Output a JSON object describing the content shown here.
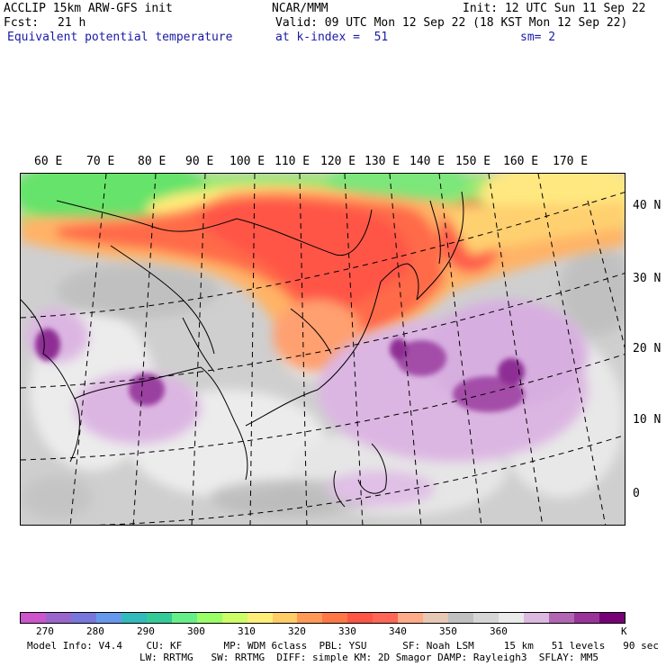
{
  "header": {
    "title_left": "ACCLIP 15km ARW-GFS init",
    "center": "NCAR/MMM",
    "init": "Init: 12 UTC Sun 11 Sep 22",
    "fcst_label": "Fcst:",
    "fcst_value": "21 h",
    "valid": "Valid: 09 UTC Mon 12 Sep 22 (18 KST Mon 12 Sep 22)",
    "field": "Equivalent potential temperature",
    "level": "at k-index =  51",
    "smoothing": "sm= 2"
  },
  "map": {
    "lon_labels": [
      "60 E",
      "70 E",
      "80 E",
      "90 E",
      "100 E",
      "110 E",
      "120 E",
      "130 E",
      "140 E",
      "150 E",
      "160 E",
      "170 E"
    ],
    "lat_labels": [
      "40 N",
      "30 N",
      "20 N",
      "10 N",
      "0"
    ]
  },
  "colorbar": {
    "colors": [
      "#cc55cc",
      "#9a66cc",
      "#7777dd",
      "#6699ee",
      "#33bbbb",
      "#33cc99",
      "#66ee88",
      "#99ff66",
      "#ccff66",
      "#ffee77",
      "#ffcc66",
      "#ff9955",
      "#ff7744",
      "#ff5544",
      "#ff6655",
      "#ffaa88",
      "#e6c8b4",
      "#c0c0c0",
      "#d6d6d6",
      "#eaeaea",
      "#ddb8e0",
      "#b266b2",
      "#993399",
      "#770077"
    ],
    "tick_labels": [
      "270",
      "280",
      "290",
      "300",
      "310",
      "320",
      "330",
      "340",
      "350",
      "360"
    ],
    "unit": "K"
  },
  "footer": {
    "line1": "Model Info: V4.4    CU: KF       MP: WDM 6class  PBL: YSU      SF: Noah LSM     15 km   51 levels   90 sec",
    "line2": "LW: RRTMG   SW: RRTMG  DIFF: simple KM: 2D Smagor DAMP: Rayleigh3  SFLAY: MM5"
  }
}
